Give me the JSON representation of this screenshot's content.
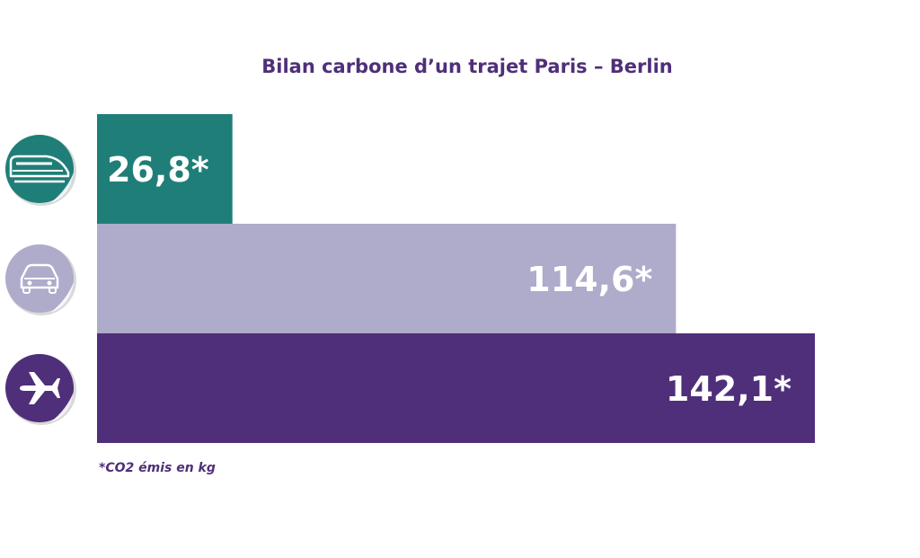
{
  "chart_data": {
    "type": "bar",
    "orientation": "horizontal",
    "title": "Bilan carbone d’un trajet Paris – Berlin",
    "categories": [
      "train",
      "car",
      "plane"
    ],
    "values": [
      26.8,
      114.6,
      142.1
    ],
    "value_labels": [
      "26,8*",
      "114,6*",
      "142,1*"
    ],
    "colors": [
      "#1f7f78",
      "#aeabcb",
      "#4f2f79"
    ],
    "icons": [
      "train-icon",
      "car-icon",
      "plane-icon"
    ],
    "xlim": [
      0,
      142.1
    ],
    "grid": false,
    "legend": "none",
    "footnote": "*CO2 émis en kg"
  }
}
